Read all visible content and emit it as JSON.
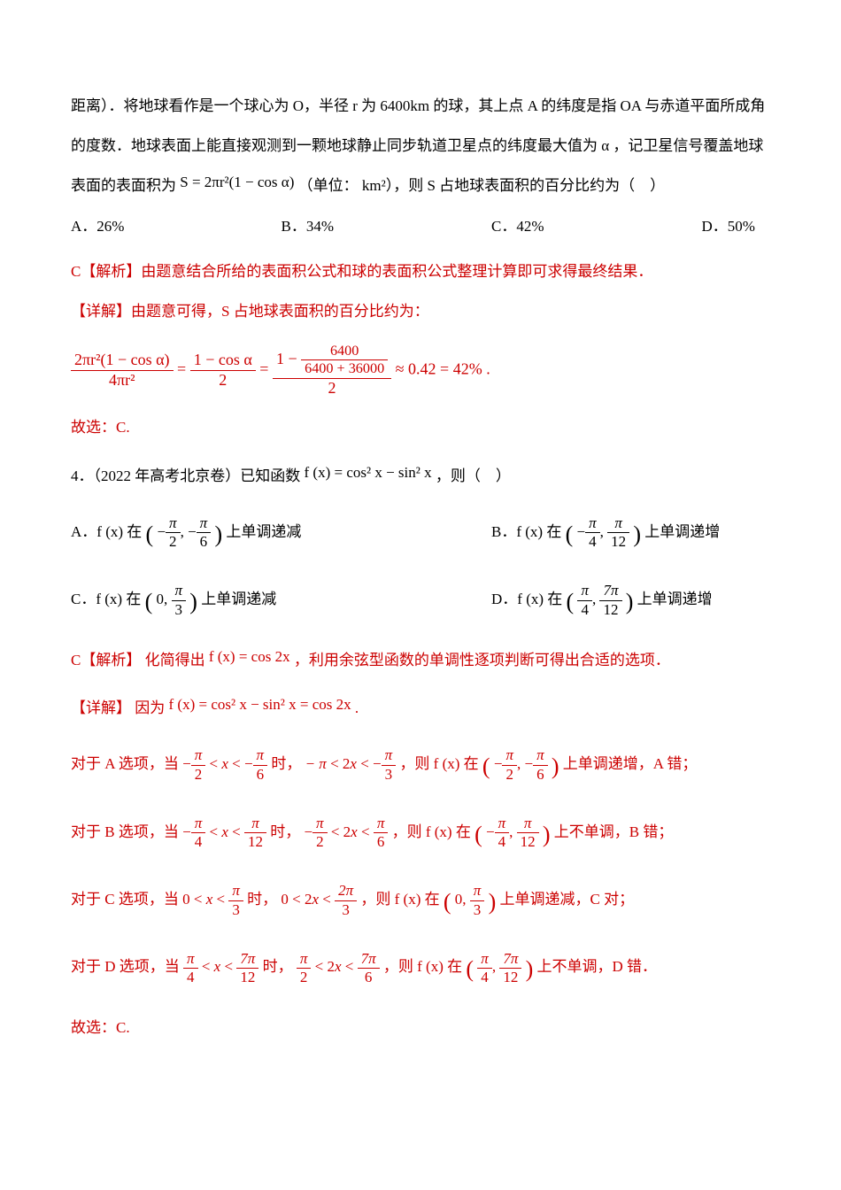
{
  "colors": {
    "text": "#000000",
    "emphasis": "#cc0000",
    "background": "#ffffff"
  },
  "font_sizes": {
    "body_pt": 12,
    "math_pt": 13
  },
  "q3": {
    "line1": "距离）．将地球看作是一个球心为 O，半径 r 为 6400km 的球，其上点 A 的纬度是指 OA 与赤道平面所成角",
    "line2": "的度数．地球表面上能直接观测到一颗地球静止同步轨道卫星点的纬度最大值为 α ，记卫星信号覆盖地球",
    "line3_prefix": "表面的表面积为 ",
    "formula_S": "S = 2πr²(1 − cos α)",
    "line3_mid": "（单位： km²），则 S 占地球表面积的百分比约为（　）",
    "options": {
      "A": "A．26%",
      "B": "B．34%",
      "C": "C．42%",
      "D": "D．50%"
    },
    "ans_label": "C【解析】",
    "ans_text": "由题意结合所给的表面积公式和球的表面积公式整理计算即可求得最终结果．",
    "detail_label": "【详解】",
    "detail_text": "由题意可得，S 占地球表面积的百分比约为：",
    "calc": {
      "lhs_num": "2πr²(1 − cos α)",
      "lhs_den": "4πr²",
      "mid_num": "1 − cos α",
      "mid_den": "2",
      "inner_top": "6400",
      "inner_bot": "6400 + 36000",
      "rhs_den": "2",
      "tail": " ≈ 0.42 = 42% ."
    },
    "conclusion": "故选：C."
  },
  "q4": {
    "stem_prefix": "4．（2022 年高考北京卷）已知函数 ",
    "func": "f (x) = cos² x − sin² x",
    "stem_suffix": "，则（　）",
    "opts": {
      "A_prefix": "A．f (x) 在",
      "A_num_l": "π",
      "A_num_r": "π",
      "A_den_l": "2",
      "A_den_r": "6",
      "A_suffix": "上单调递减",
      "B_prefix": "B．f (x) 在",
      "B_num_l": "π",
      "B_num_r": "π",
      "B_den_l": "4",
      "B_den_r": "12",
      "B_suffix": "上单调递增",
      "C_prefix": "C．f (x) 在",
      "C_num": "π",
      "C_den": "3",
      "C_suffix": "上单调递减",
      "D_prefix": "D．f (x) 在",
      "D_num_l": "π",
      "D_num_r": "7π",
      "D_den_l": "4",
      "D_den_r": "12",
      "D_suffix": "上单调递增"
    },
    "ans_label": "C【解析】",
    "ans_prefix": "化简得出 ",
    "ans_formula": "f (x) = cos 2x",
    "ans_suffix": "，利用余弦型函数的单调性逐项判断可得出合适的选项．",
    "detail_label": "【详解】",
    "detail_prefix": "因为 ",
    "detail_formula": "f (x) = cos² x − sin² x = cos 2x",
    "detail_suffix": " .",
    "optA": {
      "prefix": "对于 A 选项，当 ",
      "r1_l_num": "π",
      "r1_l_den": "2",
      "r1_r_num": "π",
      "r1_r_den": "6",
      "mid1": " 时，",
      "r2_l": "− π",
      "r2_r_num": "π",
      "r2_r_den": "3",
      "mid2": "，则 f (x) 在",
      "int_l_num": "π",
      "int_l_den": "2",
      "int_r_num": "π",
      "int_r_den": "6",
      "suffix": "上单调递增，A 错；"
    },
    "optB": {
      "prefix": "对于 B 选项，当 ",
      "r1_l_num": "π",
      "r1_l_den": "4",
      "r1_r_num": "π",
      "r1_r_den": "12",
      "mid1": " 时，",
      "r2_l_num": "π",
      "r2_l_den": "2",
      "r2_r_num": "π",
      "r2_r_den": "6",
      "mid2": "，则 f (x) 在",
      "int_l_num": "π",
      "int_l_den": "4",
      "int_r_num": "π",
      "int_r_den": "12",
      "suffix": "上不单调，B 错；"
    },
    "optC": {
      "prefix": "对于 C 选项，当 ",
      "r1_r_num": "π",
      "r1_r_den": "3",
      "mid1": " 时，",
      "r2_r_num": "2π",
      "r2_r_den": "3",
      "mid2": "，则 f (x) 在",
      "int_r_num": "π",
      "int_r_den": "3",
      "suffix": "上单调递减，C 对；"
    },
    "optD": {
      "prefix": "对于 D 选项，当 ",
      "r1_l_num": "π",
      "r1_l_den": "4",
      "r1_r_num": "7π",
      "r1_r_den": "12",
      "mid1": " 时，",
      "r2_l_num": "π",
      "r2_l_den": "2",
      "r2_r_num": "7π",
      "r2_r_den": "6",
      "mid2": "，则 f (x) 在",
      "int_l_num": "π",
      "int_l_den": "4",
      "int_r_num": "7π",
      "int_r_den": "12",
      "suffix": "上不单调，D 错．"
    },
    "conclusion": "故选：C."
  }
}
